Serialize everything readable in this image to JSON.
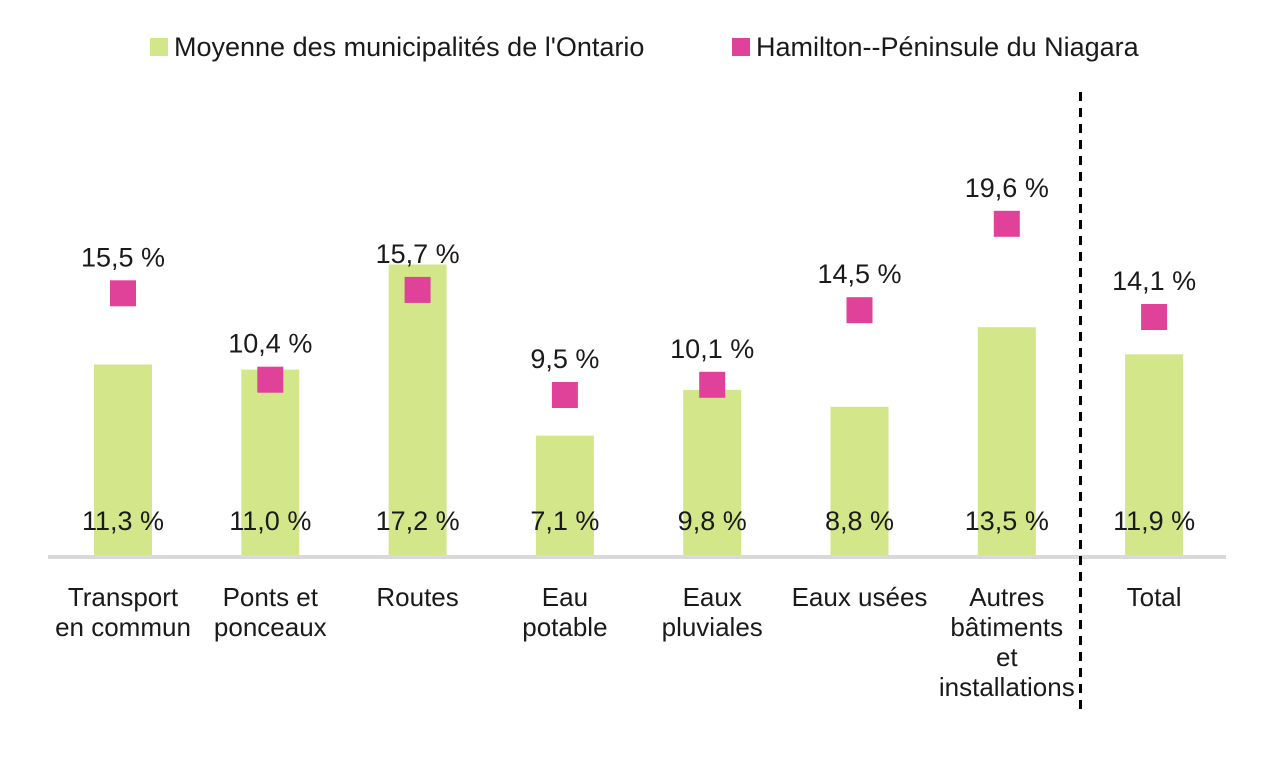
{
  "colors": {
    "bar": "#d4e68a",
    "marker": "#e0429a",
    "axis": "#d9d9d9",
    "divider": "#000000"
  },
  "legend": [
    {
      "key": "ontario",
      "label": "Moyenne des municipalités de l'Ontario",
      "color": "#d4e68a"
    },
    {
      "key": "hamilton",
      "label": "Hamilton--Péninsule du Niagara",
      "color": "#e0429a"
    }
  ],
  "chart_data": {
    "type": "bar",
    "title": "",
    "xlabel": "",
    "ylabel": "",
    "ylim": [
      0,
      21
    ],
    "grid": false,
    "legend_position": "top",
    "categories": [
      {
        "lines": [
          "Transport",
          "en commun"
        ]
      },
      {
        "lines": [
          "Ponts et",
          "ponceaux"
        ]
      },
      {
        "lines": [
          "Routes"
        ]
      },
      {
        "lines": [
          "Eau",
          "potable"
        ]
      },
      {
        "lines": [
          "Eaux",
          "pluviales"
        ]
      },
      {
        "lines": [
          "Eaux usées"
        ]
      },
      {
        "lines": [
          "Autres",
          "bâtiments",
          "et",
          "installations"
        ]
      },
      {
        "lines": [
          "Total"
        ]
      }
    ],
    "series": [
      {
        "name": "Moyenne des municipalités de l'Ontario",
        "kind": "bar",
        "values": [
          11.3,
          11.0,
          17.2,
          7.1,
          9.8,
          8.8,
          13.5,
          11.9
        ],
        "labels": [
          "11,3 %",
          "11,0 %",
          "17,2 %",
          "7,1 %",
          "9,8 %",
          "8,8 %",
          "13,5 %",
          "11,9 %"
        ]
      },
      {
        "name": "Hamilton--Péninsule du Niagara",
        "kind": "marker",
        "values": [
          15.5,
          10.4,
          15.7,
          9.5,
          10.1,
          14.5,
          19.6,
          14.1
        ],
        "labels": [
          "15,5 %",
          "10,4 %",
          "15,7 %",
          "9,5 %",
          "10,1 %",
          "14,5 %",
          "19,6 %",
          "14,1 %"
        ]
      }
    ],
    "divider_before_category": "Total"
  }
}
